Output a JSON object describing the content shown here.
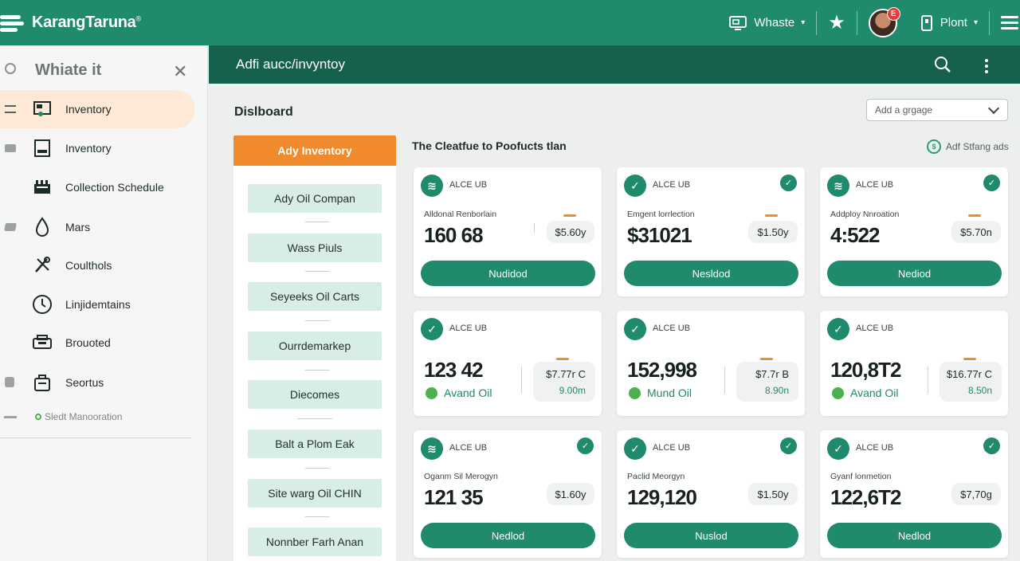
{
  "app": {
    "name": "KarangTaruna",
    "trademark": "®"
  },
  "topbar": {
    "workspace": "Whaste",
    "notification_count": "E",
    "user": "Plont"
  },
  "sidebar": {
    "title": "Whiate it",
    "items": [
      {
        "label": "Inventory",
        "icon": "inventory-icon",
        "active": true
      },
      {
        "label": "Inventory",
        "icon": "tablet-icon",
        "active": false
      },
      {
        "label": "Collection Schedule",
        "icon": "schedule-icon",
        "active": false
      },
      {
        "label": "Mars",
        "icon": "drop-icon",
        "active": false
      },
      {
        "label": "Coulthols",
        "icon": "tools-icon",
        "active": false
      },
      {
        "label": "Linjidemtains",
        "icon": "clock-icon",
        "active": false
      },
      {
        "label": "Brouoted",
        "icon": "truck-icon",
        "active": false
      },
      {
        "label": "Seortus",
        "icon": "bag-icon",
        "active": false
      }
    ],
    "footer": "Sledt Manooration"
  },
  "subheader": {
    "title": "Adfi aucc/invyntoy"
  },
  "main": {
    "title": "Dislboard",
    "select_placeholder": "Add a grgage",
    "list_header": "Ady Inventory",
    "list_items": [
      "Ady Oil Compan",
      "Wass Piuls",
      "Seyeeks Oil Carts",
      "Ourrdemarkep",
      "Diecomes",
      "Balt a Plom Eak",
      "Site warg Oil CHIN",
      "Nonnber Farh Anan"
    ],
    "section_title": "The Cleatfue to Poofucts tlan",
    "section_link": "Adf Stfang ads",
    "cards": [
      {
        "label": "ALCE UB",
        "sub": "Alldonal Renborlain",
        "value": "160 68",
        "price": "$5.60y",
        "button": "Nudidod",
        "tick": false
      },
      {
        "label": "ALCE UB",
        "sub": "Emgent lorrlection",
        "value": "$31021",
        "price": "$1.50y",
        "button": "Nesldod",
        "tick": true
      },
      {
        "label": "ALCE UB",
        "sub": "Addploy Nnroation",
        "value": "4:522",
        "price": "$5.70n",
        "button": "Nediod",
        "tick": true
      },
      {
        "label": "ALCE UB",
        "value": "123 42",
        "price": "$7.77r C",
        "price2": "9.00m",
        "oil": "Avand Oil",
        "tick": false
      },
      {
        "label": "ALCE UB",
        "value": "152,998",
        "price": "$7.7r B",
        "price2": "8.90n",
        "oil": "Mund Oil",
        "tick": false
      },
      {
        "label": "ALCE UB",
        "value": "120,8T2",
        "price": "$16.77r C",
        "price2": "8.50n",
        "oil": "Avand Oil",
        "tick": false
      },
      {
        "label": "ALCE UB",
        "sub": "Oganm Sil Merogyn",
        "value": "121 35",
        "price": "$1.60y",
        "button": "Nedlod",
        "tick": true
      },
      {
        "label": "ALCE UB",
        "sub": "Paclid Meorgyn",
        "value": "129,120",
        "price": "$1.50y",
        "button": "Nuslod",
        "tick": true
      },
      {
        "label": "ALCE UB",
        "sub": "Gyanf lonmetion",
        "value": "122,6T2",
        "price": "$7,70g",
        "button": "Nedlod",
        "tick": true
      }
    ]
  },
  "colors": {
    "primary": "#1f8a6c",
    "dark": "#16614e",
    "accent": "#f08a2c",
    "active_bg": "#fde9d6"
  }
}
